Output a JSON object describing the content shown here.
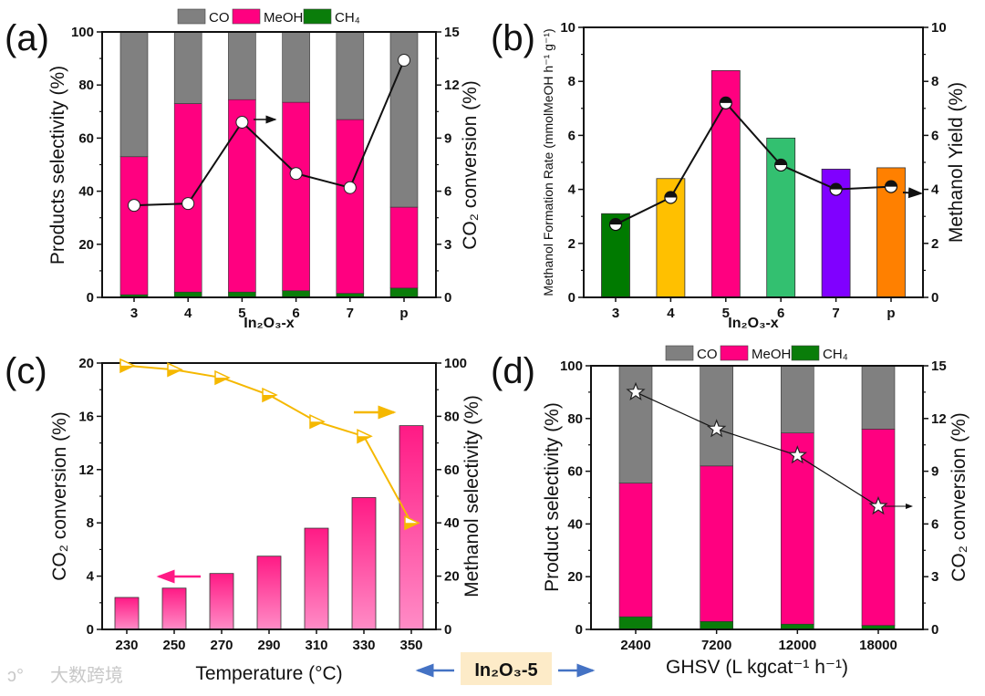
{
  "chart_data": [
    {
      "id": "a",
      "panel_label": "(a)",
      "type": "bar",
      "stacked": true,
      "categories": [
        "3",
        "4",
        "5",
        "6",
        "7",
        "p"
      ],
      "xlabel": "In₂O₃-x",
      "ylabel": "Products selectivity (%)",
      "ylim": [
        0,
        100
      ],
      "yticks": [
        0,
        20,
        40,
        60,
        80,
        100
      ],
      "y2label": "CO₂ conversion (%)",
      "y2lim": [
        0,
        15
      ],
      "y2ticks": [
        0,
        3,
        6,
        9,
        12,
        15
      ],
      "legend": {
        "placement": "top",
        "entries": [
          "CO",
          "MeOH",
          "CH₄"
        ]
      },
      "series": [
        {
          "name": "CH₄",
          "color": "#0a7d0a",
          "values": [
            1,
            2,
            2,
            2.5,
            1.5,
            3.5
          ]
        },
        {
          "name": "MeOH",
          "color": "#ff0080",
          "values": [
            52,
            71,
            72.5,
            71,
            65.5,
            30.5
          ]
        },
        {
          "name": "CO",
          "color": "#808080",
          "values": [
            47,
            27,
            25.5,
            26.5,
            33,
            66
          ]
        }
      ],
      "line": {
        "name": "CO₂ conversion",
        "axis": "right",
        "marker": "circle-open",
        "values": [
          5.2,
          5.3,
          9.9,
          7.0,
          6.2,
          13.4
        ]
      }
    },
    {
      "id": "b",
      "panel_label": "(b)",
      "type": "bar",
      "categories": [
        "3",
        "4",
        "5",
        "6",
        "7",
        "p"
      ],
      "xlabel": "In₂O₃-x",
      "ylabel": "Methanol Formation Rate (mmolMeOH h⁻¹ g⁻¹)",
      "ylim": [
        0,
        10
      ],
      "yticks": [
        0,
        2,
        4,
        6,
        8,
        10
      ],
      "y2label": "Methanol Yield (%)",
      "y2lim": [
        0,
        10
      ],
      "y2ticks": [
        0,
        2,
        4,
        6,
        8,
        10
      ],
      "bar_colors": [
        "#007a00",
        "#ffc000",
        "#ff0080",
        "#33c070",
        "#8000ff",
        "#ff8000"
      ],
      "values": [
        3.1,
        4.4,
        8.4,
        5.9,
        4.75,
        4.8
      ],
      "line": {
        "name": "Methanol Yield",
        "axis": "right",
        "marker": "circle-half",
        "values": [
          2.7,
          3.7,
          7.2,
          4.9,
          4.0,
          4.1
        ]
      }
    },
    {
      "id": "c",
      "panel_label": "(c)",
      "type": "bar",
      "categories": [
        "230",
        "250",
        "270",
        "290",
        "310",
        "330",
        "350"
      ],
      "xlabel": "Temperature (°C)",
      "ylabel": "CO₂ conversion (%)",
      "ylim": [
        0,
        20
      ],
      "yticks": [
        0,
        4,
        8,
        12,
        16,
        20
      ],
      "y2label": "Methanol selectivity (%)",
      "y2lim": [
        0,
        100
      ],
      "y2ticks": [
        0,
        20,
        40,
        60,
        80,
        100
      ],
      "bar_color": "#ff1a85",
      "values": [
        2.4,
        3.1,
        4.2,
        5.5,
        7.6,
        9.9,
        15.3
      ],
      "line": {
        "name": "Methanol selectivity",
        "axis": "right",
        "marker": "triangle-right-half",
        "color": "#f5b800",
        "values": [
          99,
          97.5,
          94.5,
          88,
          78,
          72.5,
          40
        ]
      }
    },
    {
      "id": "d",
      "panel_label": "(d)",
      "type": "bar",
      "stacked": true,
      "categories": [
        "2400",
        "7200",
        "12000",
        "18000"
      ],
      "xlabel": "GHSV (L kgcat⁻¹ h⁻¹)",
      "ylabel": "Product selectivity (%)",
      "ylim": [
        0,
        100
      ],
      "yticks": [
        0,
        20,
        40,
        60,
        80,
        100
      ],
      "y2label": "CO₂ conversion (%)",
      "y2lim": [
        0,
        15
      ],
      "y2ticks": [
        0,
        3,
        6,
        9,
        12,
        15
      ],
      "legend": {
        "placement": "top",
        "entries": [
          "CO",
          "MeOH",
          "CH₄"
        ]
      },
      "series": [
        {
          "name": "CH₄",
          "color": "#0a7d0a",
          "values": [
            4.8,
            3,
            2,
            1.5
          ]
        },
        {
          "name": "MeOH",
          "color": "#ff0080",
          "values": [
            50.7,
            59,
            72.5,
            74.5
          ]
        },
        {
          "name": "CO",
          "color": "#808080",
          "values": [
            44.5,
            38,
            25.5,
            24
          ]
        }
      ],
      "line": {
        "name": "CO₂ conversion",
        "axis": "right",
        "marker": "star-open",
        "values": [
          13.5,
          11.4,
          9.9,
          7.0
        ]
      }
    }
  ],
  "center_label": "In₂O₃-5",
  "watermark": "大数跨境",
  "colors": {
    "arrow_blue": "#4472c4",
    "label_bg": "#fdebc8",
    "pink_arrow": "#ff1a85",
    "yellow_arrow": "#f5b800"
  }
}
